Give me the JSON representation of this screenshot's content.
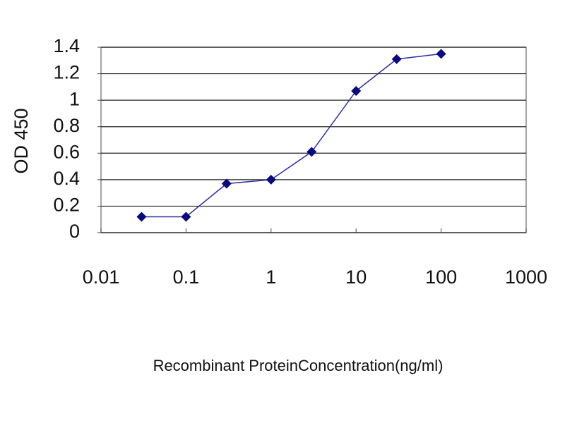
{
  "chart_data": {
    "type": "line",
    "x_label": "Recombinant ProteinConcentration(ng/ml)",
    "y_label": "OD 450",
    "x": [
      0.03,
      0.1,
      0.3,
      1,
      3,
      10,
      30,
      100
    ],
    "values": [
      0.12,
      0.12,
      0.37,
      0.4,
      0.61,
      1.07,
      1.31,
      1.35
    ],
    "color": "#2e2e9e",
    "marker_color": "#0a0a80",
    "x_scale": "log",
    "xlim": [
      0.01,
      1000
    ],
    "xticks": [
      0.01,
      0.1,
      1,
      10,
      100,
      1000
    ],
    "ylim": [
      0,
      1.4
    ],
    "yticks": [
      0,
      0.2,
      0.4,
      0.6,
      0.8,
      1,
      1.2,
      1.4
    ],
    "grid": true
  }
}
